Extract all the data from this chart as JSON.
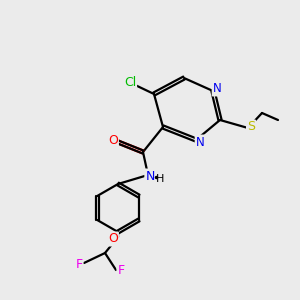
{
  "background_color": "#ebebeb",
  "bond_color": "#000000",
  "atom_colors": {
    "Cl": "#00bb00",
    "O": "#ff0000",
    "N": "#0000ee",
    "S": "#bbbb00",
    "F": "#ee00ee",
    "C": "#000000",
    "H": "#000000"
  },
  "figsize": [
    3.0,
    3.0
  ],
  "dpi": 100
}
